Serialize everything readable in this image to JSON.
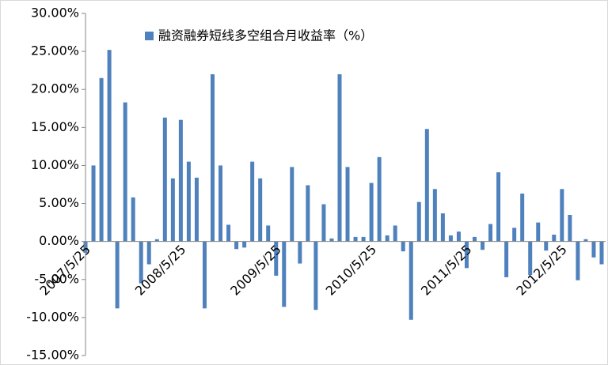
{
  "chart_data": {
    "type": "bar",
    "series": [
      {
        "name": "融资融券短线多空组合月收益率（%）",
        "color": "#4f81bd",
        "values": [
          -1.5,
          10.0,
          21.5,
          25.2,
          -8.8,
          18.3,
          5.8,
          -5.5,
          -3.0,
          0.3,
          16.3,
          8.3,
          16.0,
          10.5,
          8.4,
          -8.8,
          22.0,
          10.0,
          2.2,
          -1.0,
          -0.8,
          10.5,
          8.3,
          2.1,
          -4.5,
          -8.6,
          9.8,
          -2.9,
          7.4,
          -9.0,
          4.9,
          0.4,
          22.0,
          9.8,
          0.6,
          0.6,
          7.7,
          11.1,
          0.8,
          2.1,
          -1.3,
          -10.3,
          5.2,
          14.8,
          6.9,
          3.7,
          0.8,
          1.3,
          -3.5,
          0.6,
          -1.1,
          2.3,
          9.1,
          -4.7,
          1.8,
          6.3,
          -4.4,
          2.5,
          -1.2,
          0.9,
          6.9,
          3.5,
          -5.1,
          0.3,
          -2.1,
          -3.0
        ]
      }
    ],
    "categories": [
      "2007/5/25",
      null,
      null,
      null,
      null,
      null,
      null,
      null,
      null,
      null,
      null,
      null,
      "2008/5/25",
      null,
      null,
      null,
      null,
      null,
      null,
      null,
      null,
      null,
      null,
      null,
      "2009/5/25",
      null,
      null,
      null,
      null,
      null,
      null,
      null,
      null,
      null,
      null,
      null,
      "2010/5/25",
      null,
      null,
      null,
      null,
      null,
      null,
      null,
      null,
      null,
      null,
      null,
      "2011/5/25",
      null,
      null,
      null,
      null,
      null,
      null,
      null,
      null,
      null,
      null,
      null,
      "2012/5/25",
      null,
      null,
      null,
      null,
      null
    ],
    "ylim": [
      -15,
      30
    ],
    "yticks": [
      {
        "value": -15,
        "label": "-15.00%"
      },
      {
        "value": -10,
        "label": "-10.00%"
      },
      {
        "value": -5,
        "label": "-5.00%"
      },
      {
        "value": 0,
        "label": "0.00%"
      },
      {
        "value": 5,
        "label": "5.00%"
      },
      {
        "value": 10,
        "label": "10.00%"
      },
      {
        "value": 15,
        "label": "15.00%"
      },
      {
        "value": 20,
        "label": "20.00%"
      },
      {
        "value": 25,
        "label": "25.00%"
      },
      {
        "value": 30,
        "label": "30.00%"
      }
    ],
    "grid": false,
    "legend": "top"
  }
}
